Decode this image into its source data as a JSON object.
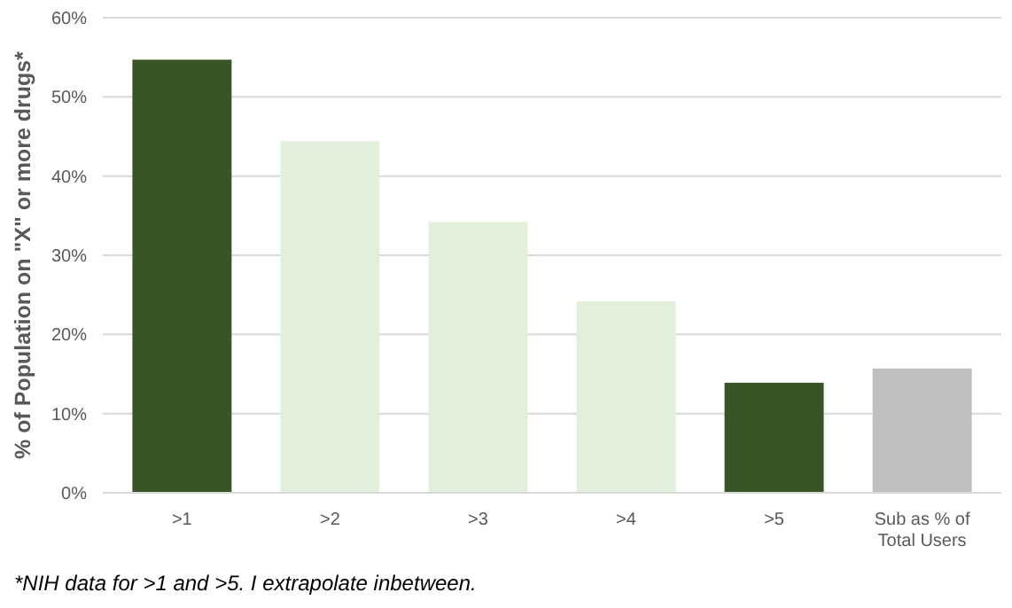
{
  "chart_data": {
    "type": "bar",
    "ylabel": "% of Population on \"X\" or more drugs*",
    "categories": [
      ">1",
      ">2",
      ">3",
      ">4",
      ">5",
      "Sub as % of Total Users"
    ],
    "values": [
      54.7,
      44.4,
      34.2,
      24.2,
      13.9,
      15.7
    ],
    "colors": [
      "#375623",
      "#e2efda",
      "#e2efda",
      "#e2efda",
      "#375623",
      "#bfbfbf"
    ],
    "ylim": [
      0,
      60
    ],
    "yticks": [
      {
        "value": 0,
        "label": "0%"
      },
      {
        "value": 10,
        "label": "10%"
      },
      {
        "value": 20,
        "label": "20%"
      },
      {
        "value": 30,
        "label": "30%"
      },
      {
        "value": 40,
        "label": "40%"
      },
      {
        "value": 50,
        "label": "50%"
      },
      {
        "value": 60,
        "label": "60%"
      }
    ],
    "grid": "y",
    "annotations": [
      "*NIH data for >1 and >5. I extrapolate inbetween."
    ]
  }
}
